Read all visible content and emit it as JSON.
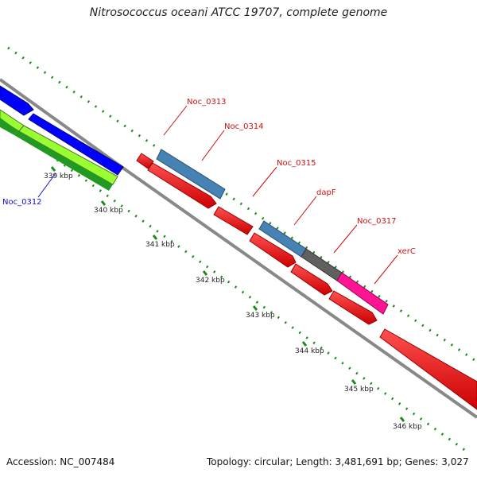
{
  "title": "Nitrosococcus oceani ATCC 19707, complete genome",
  "footer": {
    "accession": "Accession: NC_007484",
    "summary": "Topology: circular; Length: 3,481,691 bp; Genes: 3,027"
  },
  "ruler": {
    "ticks": [
      {
        "label": "339 kbp"
      },
      {
        "label": "340 kbp"
      },
      {
        "label": "341 kbp"
      },
      {
        "label": "342 kbp"
      },
      {
        "label": "343 kbp"
      },
      {
        "label": "344 kbp"
      },
      {
        "label": "345 kbp"
      },
      {
        "label": "346 kbp"
      }
    ]
  },
  "genes": [
    {
      "name": "Noc_0312",
      "color": "#1010d0",
      "strand": "forward"
    },
    {
      "name": "Noc_0313",
      "color": "#d01010",
      "strand": "forward"
    },
    {
      "name": "Noc_0314",
      "color": "#d01010",
      "strand": "forward"
    },
    {
      "name": "Noc_0315",
      "color": "#d01010",
      "strand": "forward"
    },
    {
      "name": "dapF",
      "color": "#d01010",
      "strand": "forward"
    },
    {
      "name": "Noc_0317",
      "color": "#d01010",
      "strand": "forward"
    },
    {
      "name": "xerC",
      "color": "#d01010",
      "strand": "forward"
    }
  ],
  "colors": {
    "gene_red": "#ff1010",
    "gene_blue": "#0000ff",
    "cds_steelblue": "#4682b4",
    "cds_gray": "#606060",
    "cds_pink": "#ff1493",
    "lime": "#99ff33",
    "green": "#229922",
    "backbone": "#888888",
    "tick_green": "#1a8a1a"
  }
}
